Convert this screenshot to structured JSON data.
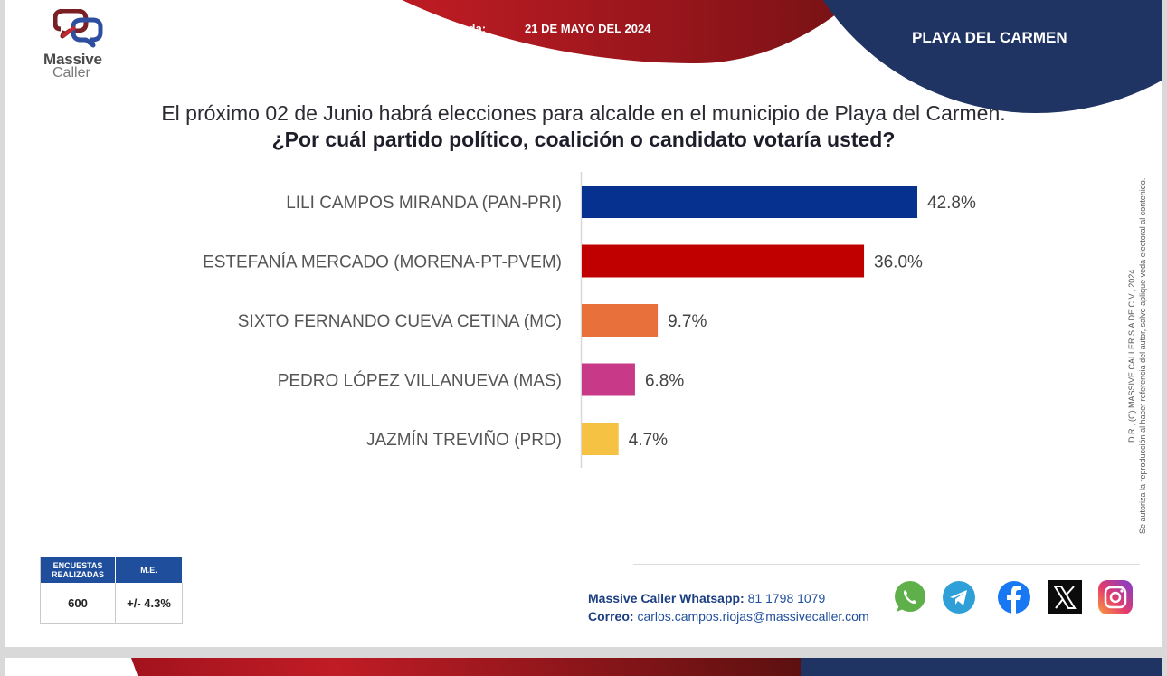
{
  "header": {
    "survey_label": "Última encuesta elaborada:",
    "survey_date": "21 DE MAYO DEL 2024",
    "city": "PLAYA DEL CARMEN"
  },
  "logo": {
    "line1": "Massive",
    "line2": "Caller",
    "icon": "speech-bubbles-icon"
  },
  "chart_data": {
    "type": "bar",
    "orientation": "horizontal",
    "title": "¿Por cuál partido político, coalición o candidato votaría usted?",
    "subtitle": "El próximo 02 de Junio habrá elecciones para alcalde en el municipio de  Playa del Carmen.",
    "xlabel": "",
    "ylabel": "",
    "grid": false,
    "legend": "none",
    "categories": [
      "LILI CAMPOS MIRANDA (PAN-PRI)",
      "ESTEFANÍA MERCADO (MORENA-PT-PVEM)",
      "SIXTO FERNANDO CUEVA CETINA (MC)",
      "PEDRO LÓPEZ VILLANUEVA (MAS)",
      "JAZMÍN TREVIÑO (PRD)"
    ],
    "values": [
      42.8,
      36.0,
      9.7,
      6.8,
      4.7
    ],
    "value_labels": [
      "42.8%",
      "36.0%",
      "9.7%",
      "6.8%",
      "4.7%"
    ],
    "colors": [
      "#06318f",
      "#c00000",
      "#e8703a",
      "#c83a88",
      "#f6c244"
    ],
    "xlim": [
      0,
      50
    ],
    "unit": "%"
  },
  "copyright": {
    "line1": "D.R., (C) MASSIVE CALLER S.A DE C.V., 2024",
    "line2": "Se autoriza la reproducción al hacer referencia del autor, salvo aplique veda electoral al contenido."
  },
  "stats": {
    "col1_header": "ENCUESTAS REALIZADAS",
    "col2_header": "M.E.",
    "col1_value": "600",
    "col2_value": "+/- 4.3%"
  },
  "contact": {
    "whatsapp_label": "Massive Caller Whatsapp:",
    "whatsapp_number": "81 1798 1079",
    "email_label": "Correo:",
    "email": "carlos.campos.riojas@massivecaller.com"
  },
  "social": [
    "whatsapp-icon",
    "telegram-icon",
    "facebook-icon",
    "x-icon",
    "instagram-icon"
  ],
  "colors": {
    "brand_red": "#b01820",
    "brand_blue": "#1f3462",
    "table_header": "#1f4e9c"
  }
}
